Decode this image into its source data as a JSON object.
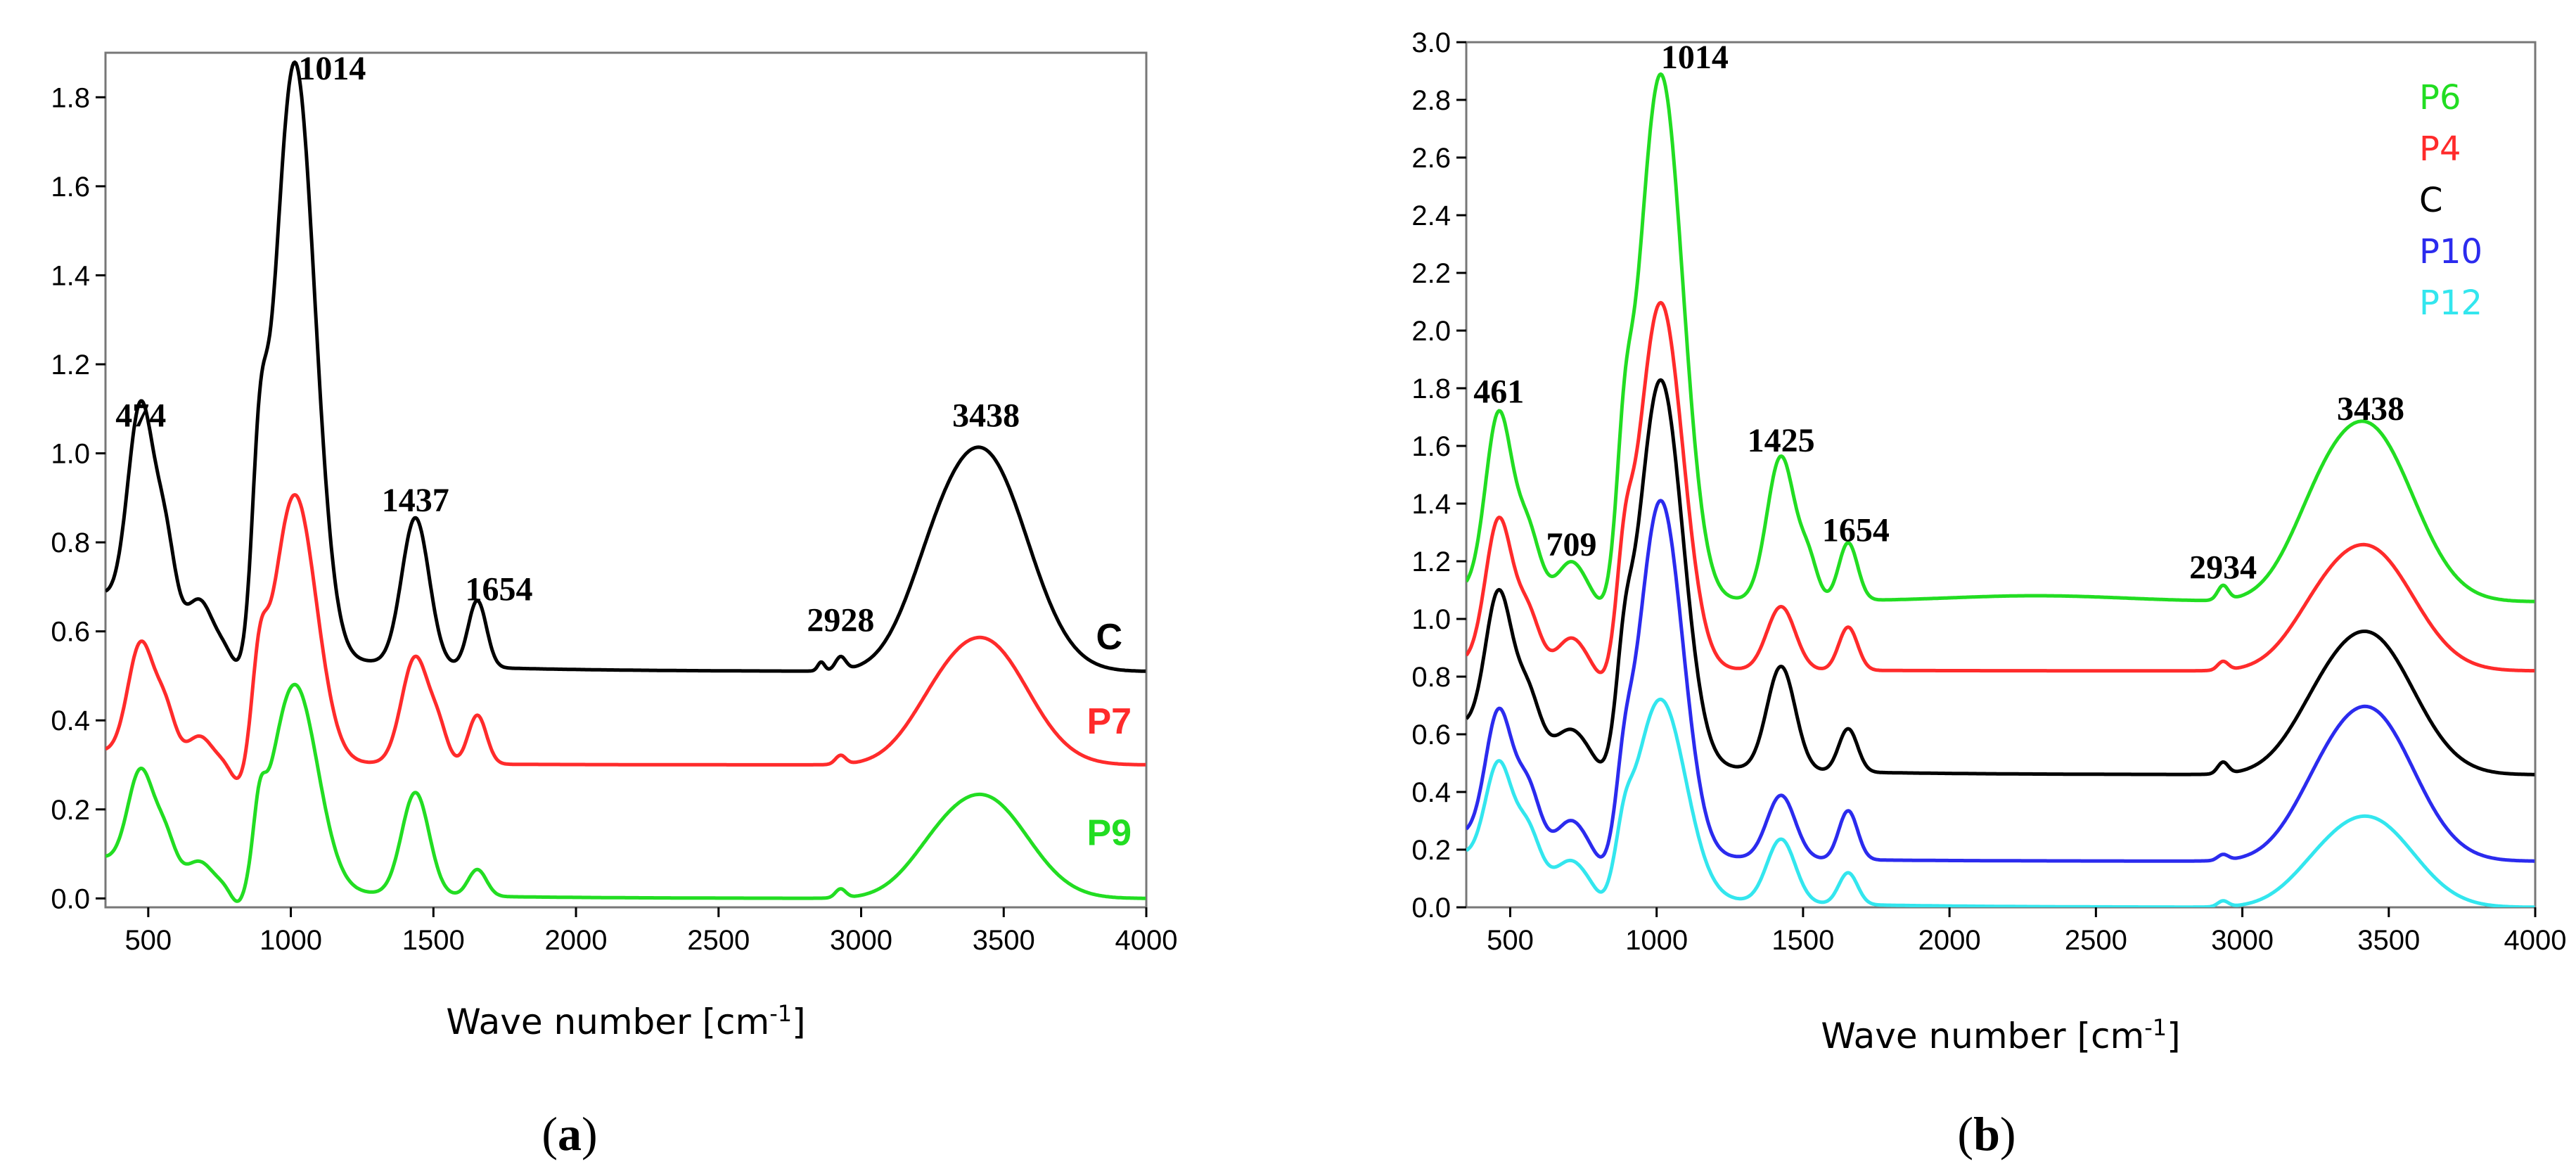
{
  "chart_data": [
    {
      "type": "line",
      "id": "a",
      "caption": "(a)",
      "caption_letter": "a",
      "xlabel": "Wave number [cm",
      "xlabel_sup": "-1",
      "xlabel_end": "]",
      "ylabel": "",
      "xlim": [
        350,
        4000
      ],
      "ylim": [
        -0.02,
        1.9
      ],
      "xticks": [
        500,
        1000,
        1500,
        2000,
        2500,
        3000,
        3500,
        4000
      ],
      "yticks": [
        0.0,
        0.2,
        0.4,
        0.6,
        0.8,
        1.0,
        1.2,
        1.4,
        1.6,
        1.8
      ],
      "ytick_labels": [
        "0.0",
        "0.2",
        "0.4",
        "0.6",
        "0.8",
        "1.0",
        "1.2",
        "1.4",
        "1.6",
        "1.8"
      ],
      "grid": false,
      "series": [
        {
          "name": "C",
          "color": "#000000",
          "baseline": 0.51,
          "start": 0.68,
          "end": 0.51,
          "peaks": [
            [
              474,
              0.47,
              45
            ],
            [
              560,
              0.18,
              35
            ],
            [
              680,
              0.08,
              40
            ],
            [
              1014,
              1.33,
              70
            ],
            [
              890,
              0.3,
              25
            ],
            [
              1437,
              0.33,
              48
            ],
            [
              1654,
              0.15,
              32
            ],
            [
              2928,
              0.03,
              18
            ],
            [
              2860,
              0.02,
              12
            ],
            [
              3438,
              0.47,
              150
            ],
            [
              3250,
              0.12,
              110
            ]
          ],
          "dips": [
            [
              820,
              0.0,
              30
            ]
          ]
        },
        {
          "name": "P7",
          "color": "#ff2b2b",
          "baseline": 0.3,
          "start": 0.33,
          "end": 0.3,
          "peaks": [
            [
              474,
              0.25,
              45
            ],
            [
              560,
              0.1,
              35
            ],
            [
              680,
              0.05,
              40
            ],
            [
              1014,
              0.6,
              75
            ],
            [
              890,
              0.15,
              25
            ],
            [
              1437,
              0.24,
              48
            ],
            [
              1520,
              0.06,
              30
            ],
            [
              1654,
              0.11,
              32
            ],
            [
              2928,
              0.02,
              18
            ],
            [
              3438,
              0.27,
              150
            ],
            [
              3250,
              0.06,
              110
            ]
          ],
          "dips": [
            [
              820,
              0.0,
              30
            ]
          ]
        },
        {
          "name": "P9",
          "color": "#22dd22",
          "baseline": 0.0,
          "start": 0.09,
          "end": 0.0,
          "peaks": [
            [
              474,
              0.22,
              45
            ],
            [
              560,
              0.08,
              35
            ],
            [
              680,
              0.04,
              40
            ],
            [
              1014,
              0.46,
              80
            ],
            [
              890,
              0.1,
              20
            ],
            [
              1437,
              0.23,
              48
            ],
            [
              1654,
              0.06,
              32
            ],
            [
              2928,
              0.02,
              18
            ],
            [
              3438,
              0.22,
              150
            ],
            [
              3250,
              0.05,
              110
            ]
          ],
          "dips": [
            [
              820,
              0.0,
              30
            ]
          ]
        }
      ],
      "annotations": [
        {
          "text": "474",
          "x": 474,
          "y": 1.06
        },
        {
          "text": "1014",
          "x": 1145,
          "y": 1.84
        },
        {
          "text": "1437",
          "x": 1437,
          "y": 0.87
        },
        {
          "text": "1654",
          "x": 1730,
          "y": 0.67
        },
        {
          "text": "2928",
          "x": 2928,
          "y": 0.6
        },
        {
          "text": "3438",
          "x": 3438,
          "y": 1.06
        }
      ],
      "series_labels": [
        {
          "text": "C",
          "color": "#000000",
          "x": 3870,
          "y": 0.56
        },
        {
          "text": "P7",
          "color": "#ff2b2b",
          "x": 3870,
          "y": 0.37
        },
        {
          "text": "P9",
          "color": "#22dd22",
          "x": 3870,
          "y": 0.12
        }
      ]
    },
    {
      "type": "line",
      "id": "b",
      "caption": "(b)",
      "caption_letter": "b",
      "xlabel": "Wave number [cm",
      "xlabel_sup": "-1",
      "xlabel_end": "]",
      "ylabel": "",
      "xlim": [
        350,
        4000
      ],
      "ylim": [
        0,
        3.0
      ],
      "xticks": [
        500,
        1000,
        1500,
        2000,
        2500,
        3000,
        3500,
        4000
      ],
      "yticks": [
        0.0,
        0.2,
        0.4,
        0.6,
        0.8,
        1.0,
        1.2,
        1.4,
        1.6,
        1.8,
        2.0,
        2.2,
        2.4,
        2.6,
        2.8,
        3.0
      ],
      "ytick_labels": [
        "0.0",
        "0.2",
        "0.4",
        "0.6",
        "0.8",
        "1.0",
        "1.2",
        "1.4",
        "1.6",
        "1.8",
        "2.0",
        "2.2",
        "2.4",
        "2.6",
        "2.8",
        "3.0"
      ],
      "grid": false,
      "series": [
        {
          "name": "P6",
          "color": "#22dd22",
          "baseline": 1.06,
          "start": 1.1,
          "end": 1.05,
          "peaks": [
            [
              461,
              0.62,
              45
            ],
            [
              560,
              0.22,
              40
            ],
            [
              709,
              0.12,
              45
            ],
            [
              1014,
              1.82,
              75
            ],
            [
              890,
              0.3,
              25
            ],
            [
              1425,
              0.5,
              48
            ],
            [
              1520,
              0.12,
              30
            ],
            [
              1654,
              0.2,
              32
            ],
            [
              2300,
              0.02,
              300
            ],
            [
              2934,
              0.05,
              18
            ],
            [
              3438,
              0.58,
              150
            ],
            [
              3250,
              0.16,
              110
            ]
          ],
          "dips": [
            [
              820,
              0.0,
              30
            ]
          ]
        },
        {
          "name": "P4",
          "color": "#ff2b2b",
          "baseline": 0.82,
          "start": 0.85,
          "end": 0.82,
          "peaks": [
            [
              461,
              0.5,
              45
            ],
            [
              560,
              0.18,
              40
            ],
            [
              709,
              0.1,
              45
            ],
            [
              1014,
              1.27,
              75
            ],
            [
              890,
              0.22,
              25
            ],
            [
              1425,
              0.22,
              48
            ],
            [
              1654,
              0.15,
              32
            ],
            [
              2934,
              0.03,
              18
            ],
            [
              3438,
              0.41,
              150
            ],
            [
              3250,
              0.1,
              110
            ]
          ],
          "dips": [
            [
              820,
              0.0,
              30
            ]
          ]
        },
        {
          "name": "C",
          "color": "#000000",
          "baseline": 0.46,
          "start": 0.63,
          "end": 0.46,
          "peaks": [
            [
              461,
              0.5,
              45
            ],
            [
              560,
              0.18,
              40
            ],
            [
              709,
              0.08,
              45
            ],
            [
              1014,
              1.33,
              75
            ],
            [
              890,
              0.2,
              25
            ],
            [
              1425,
              0.36,
              48
            ],
            [
              1654,
              0.15,
              32
            ],
            [
              2934,
              0.04,
              18
            ],
            [
              3438,
              0.47,
              150
            ],
            [
              3250,
              0.1,
              110
            ]
          ],
          "dips": [
            [
              820,
              0.0,
              30
            ]
          ]
        },
        {
          "name": "P10",
          "color": "#2b2bee",
          "baseline": 0.16,
          "start": 0.25,
          "end": 0.16,
          "peaks": [
            [
              461,
              0.45,
              45
            ],
            [
              560,
              0.2,
              40
            ],
            [
              709,
              0.1,
              45
            ],
            [
              1014,
              1.23,
              75
            ],
            [
              890,
              0.15,
              25
            ],
            [
              1425,
              0.22,
              48
            ],
            [
              1654,
              0.17,
              32
            ],
            [
              2934,
              0.02,
              18
            ],
            [
              3438,
              0.51,
              150
            ],
            [
              3250,
              0.1,
              110
            ]
          ],
          "dips": [
            [
              820,
              0.0,
              30
            ]
          ]
        },
        {
          "name": "P12",
          "color": "#33e6ee",
          "baseline": 0.0,
          "start": 0.18,
          "end": 0.0,
          "peaks": [
            [
              461,
              0.36,
              45
            ],
            [
              560,
              0.16,
              40
            ],
            [
              709,
              0.08,
              45
            ],
            [
              1014,
              0.68,
              85
            ],
            [
              890,
              0.1,
              25
            ],
            [
              1425,
              0.22,
              48
            ],
            [
              1654,
              0.11,
              32
            ],
            [
              2934,
              0.02,
              18
            ],
            [
              3438,
              0.3,
              150
            ],
            [
              3250,
              0.06,
              110
            ]
          ],
          "dips": [
            [
              820,
              0.0,
              30
            ]
          ]
        }
      ],
      "annotations": [
        {
          "text": "461",
          "x": 461,
          "y": 1.75
        },
        {
          "text": "709",
          "x": 709,
          "y": 1.22
        },
        {
          "text": "1014",
          "x": 1130,
          "y": 2.91
        },
        {
          "text": "1425",
          "x": 1425,
          "y": 1.58
        },
        {
          "text": "1654",
          "x": 1680,
          "y": 1.27
        },
        {
          "text": "2934",
          "x": 2934,
          "y": 1.14
        },
        {
          "text": "3438",
          "x": 3438,
          "y": 1.69
        }
      ],
      "legend": [
        {
          "text": "P6",
          "color": "#22dd22"
        },
        {
          "text": "P4",
          "color": "#ff2b2b"
        },
        {
          "text": "C",
          "color": "#000000"
        },
        {
          "text": "P10",
          "color": "#2b2bee"
        },
        {
          "text": "P12",
          "color": "#33e6ee"
        }
      ],
      "legend_position": "top-right"
    }
  ]
}
